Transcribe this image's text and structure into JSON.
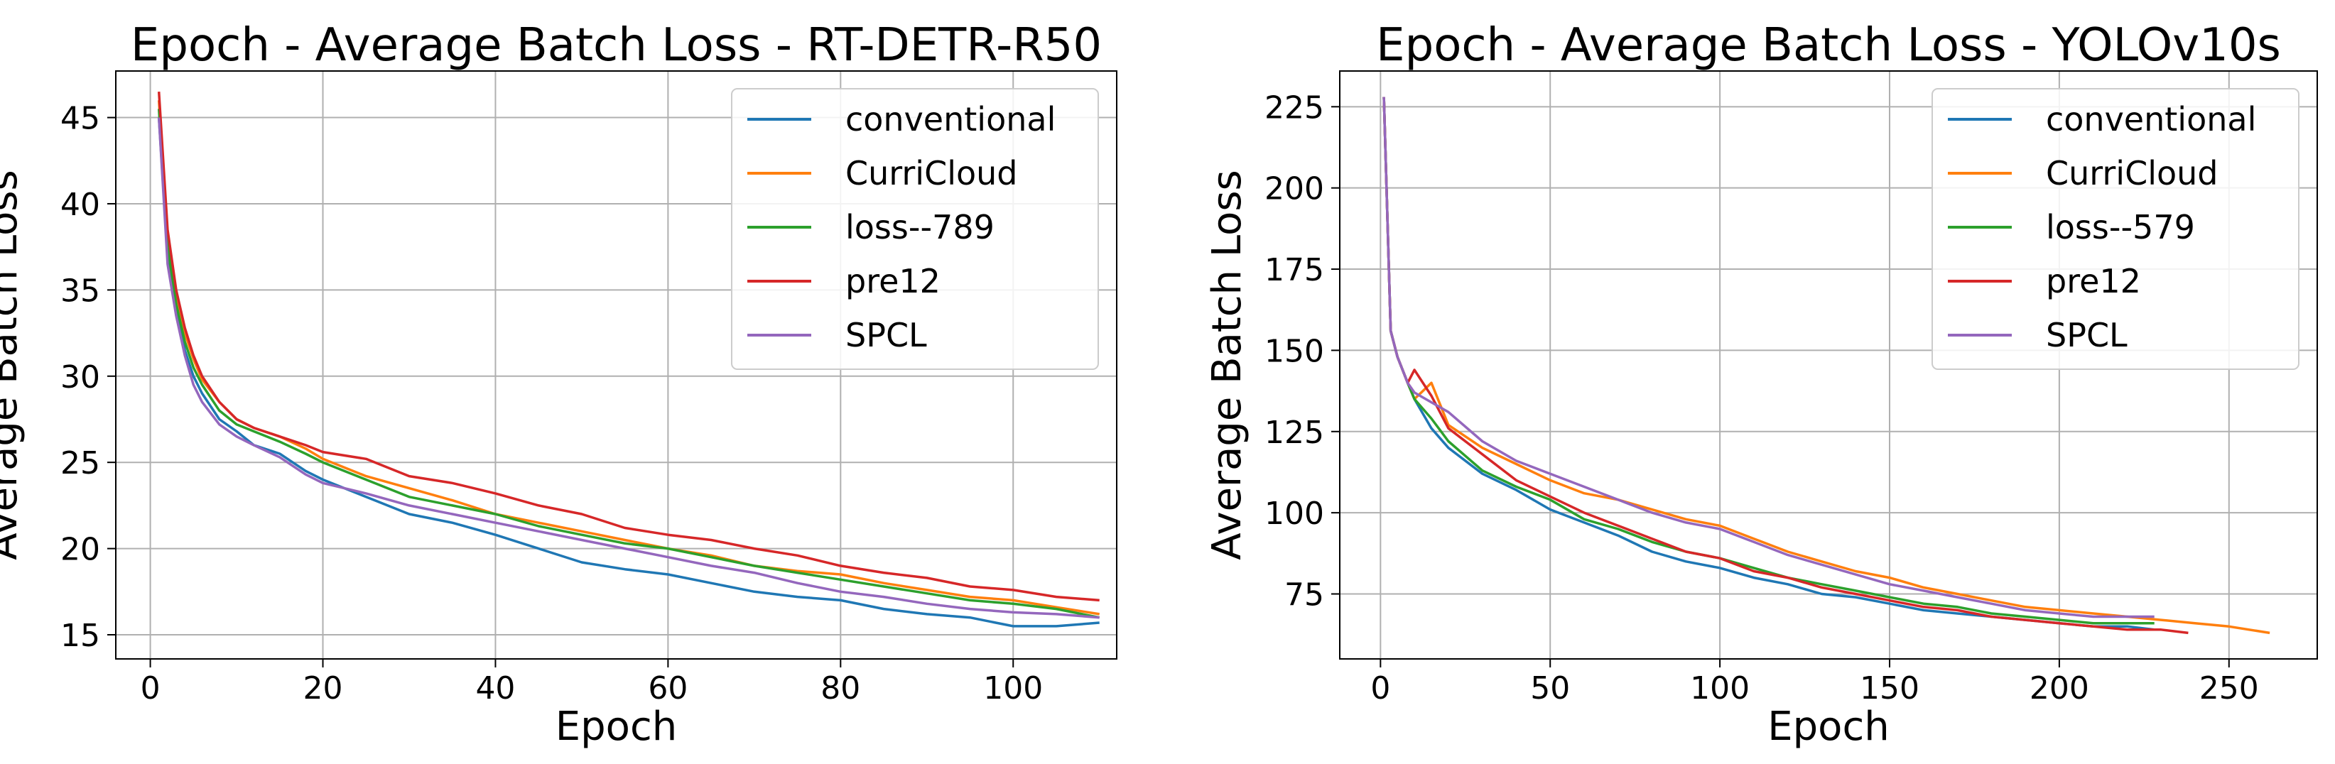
{
  "chart_data": [
    {
      "type": "line",
      "title": "Epoch - Average Batch Loss - RT-DETR-R50",
      "xlabel": "Epoch",
      "ylabel": "Average Batch Loss",
      "xlim": [
        -4,
        112
      ],
      "ylim": [
        13.6,
        47.7
      ],
      "xticks": [
        0,
        20,
        40,
        60,
        80,
        100
      ],
      "yticks": [
        15,
        20,
        25,
        30,
        35,
        40,
        45
      ],
      "grid": true,
      "legend": "top-right",
      "series": [
        {
          "name": "conventional",
          "color": "#1f77b4",
          "x": [
            1,
            2,
            3,
            4,
            5,
            6,
            8,
            10,
            12,
            15,
            18,
            20,
            25,
            30,
            35,
            40,
            45,
            50,
            55,
            60,
            65,
            70,
            75,
            80,
            85,
            90,
            95,
            100,
            105,
            110
          ],
          "y": [
            45.0,
            37.0,
            34.0,
            31.5,
            30.0,
            29.0,
            27.5,
            26.8,
            26.0,
            25.5,
            24.5,
            24.0,
            23.0,
            22.0,
            21.5,
            20.8,
            20.0,
            19.2,
            18.8,
            18.5,
            18.0,
            17.5,
            17.2,
            17.0,
            16.5,
            16.2,
            16.0,
            15.5,
            15.5,
            15.7
          ]
        },
        {
          "name": "CurriCloud",
          "color": "#ff7f0e",
          "x": [
            1,
            2,
            3,
            4,
            5,
            6,
            8,
            10,
            12,
            15,
            18,
            20,
            25,
            30,
            35,
            40,
            45,
            50,
            55,
            60,
            65,
            70,
            75,
            80,
            85,
            90,
            95,
            100,
            105,
            110
          ],
          "y": [
            46.0,
            38.0,
            34.5,
            32.5,
            31.0,
            29.8,
            28.5,
            27.5,
            27.0,
            26.5,
            25.8,
            25.2,
            24.2,
            23.5,
            22.8,
            22.0,
            21.5,
            21.0,
            20.5,
            20.0,
            19.6,
            19.0,
            18.7,
            18.5,
            18.0,
            17.6,
            17.2,
            17.0,
            16.6,
            16.2
          ]
        },
        {
          "name": "loss--789",
          "color": "#2ca02c",
          "x": [
            1,
            2,
            3,
            4,
            5,
            6,
            8,
            10,
            12,
            15,
            18,
            20,
            25,
            30,
            35,
            40,
            45,
            50,
            55,
            60,
            65,
            70,
            75,
            80,
            85,
            90,
            95,
            100,
            105,
            110
          ],
          "y": [
            45.5,
            37.5,
            34.2,
            32.0,
            30.5,
            29.5,
            28.0,
            27.2,
            26.8,
            26.2,
            25.5,
            25.0,
            24.0,
            23.0,
            22.5,
            22.0,
            21.3,
            20.8,
            20.3,
            20.0,
            19.5,
            19.0,
            18.6,
            18.2,
            17.8,
            17.4,
            17.0,
            16.8,
            16.5,
            16.0
          ]
        },
        {
          "name": "pre12",
          "color": "#d62728",
          "x": [
            1,
            2,
            3,
            4,
            5,
            6,
            8,
            10,
            12,
            15,
            18,
            20,
            25,
            30,
            35,
            40,
            45,
            50,
            55,
            60,
            65,
            70,
            75,
            80,
            85,
            90,
            95,
            100,
            105,
            110
          ],
          "y": [
            46.5,
            38.5,
            35.0,
            32.8,
            31.2,
            30.0,
            28.5,
            27.5,
            27.0,
            26.5,
            26.0,
            25.6,
            25.2,
            24.2,
            23.8,
            23.2,
            22.5,
            22.0,
            21.2,
            20.8,
            20.5,
            20.0,
            19.6,
            19.0,
            18.6,
            18.3,
            17.8,
            17.6,
            17.2,
            17.0
          ]
        },
        {
          "name": "SPCL",
          "color": "#9467bd",
          "x": [
            1,
            2,
            3,
            4,
            5,
            6,
            8,
            10,
            12,
            15,
            18,
            20,
            25,
            30,
            35,
            40,
            45,
            50,
            55,
            60,
            65,
            70,
            75,
            80,
            85,
            90,
            95,
            100,
            105,
            110
          ],
          "y": [
            45.0,
            36.5,
            33.5,
            31.2,
            29.5,
            28.5,
            27.2,
            26.5,
            26.0,
            25.3,
            24.3,
            23.8,
            23.2,
            22.5,
            22.0,
            21.5,
            21.0,
            20.5,
            20.0,
            19.5,
            19.0,
            18.6,
            18.0,
            17.5,
            17.2,
            16.8,
            16.5,
            16.3,
            16.2,
            16.0
          ]
        }
      ]
    },
    {
      "type": "line",
      "title": "Epoch - Average Batch Loss - YOLOv10s",
      "xlabel": "Epoch",
      "ylabel": "Average Batch Loss",
      "xlim": [
        -12,
        276
      ],
      "ylim": [
        55,
        236
      ],
      "xticks": [
        0,
        50,
        100,
        150,
        200,
        250
      ],
      "yticks": [
        75,
        100,
        125,
        150,
        175,
        200,
        225
      ],
      "grid": true,
      "legend": "top-right",
      "series": [
        {
          "name": "conventional",
          "color": "#1f77b4",
          "x": [
            1,
            3,
            5,
            8,
            10,
            15,
            20,
            30,
            40,
            50,
            60,
            70,
            80,
            90,
            100,
            110,
            120,
            130,
            140,
            150,
            160,
            170,
            180,
            190,
            200,
            210,
            220,
            228
          ],
          "y": [
            228,
            156,
            148,
            140,
            135,
            126,
            120,
            112,
            107,
            101,
            97,
            93,
            88,
            85,
            83,
            80,
            78,
            75,
            74,
            72,
            70,
            69,
            68,
            67,
            66,
            65,
            65,
            64
          ]
        },
        {
          "name": "CurriCloud",
          "color": "#ff7f0e",
          "x": [
            1,
            3,
            5,
            8,
            10,
            15,
            20,
            30,
            40,
            50,
            60,
            70,
            80,
            90,
            100,
            110,
            120,
            130,
            140,
            150,
            160,
            170,
            180,
            190,
            200,
            210,
            220,
            230,
            240,
            250,
            262
          ],
          "y": [
            228,
            156,
            148,
            140,
            135,
            140,
            127,
            120,
            115,
            110,
            106,
            104,
            101,
            98,
            96,
            92,
            88,
            85,
            82,
            80,
            77,
            75,
            73,
            71,
            70,
            69,
            68,
            67,
            66,
            65,
            63
          ]
        },
        {
          "name": "loss--579",
          "color": "#2ca02c",
          "x": [
            1,
            3,
            5,
            8,
            10,
            15,
            20,
            30,
            40,
            50,
            60,
            70,
            80,
            90,
            100,
            110,
            120,
            130,
            140,
            150,
            160,
            170,
            180,
            190,
            200,
            210,
            220,
            228
          ],
          "y": [
            228,
            156,
            148,
            140,
            135,
            129,
            122,
            113,
            108,
            104,
            98,
            95,
            91,
            88,
            86,
            83,
            80,
            78,
            76,
            74,
            72,
            71,
            69,
            68,
            67,
            66,
            66,
            66
          ]
        },
        {
          "name": "pre12",
          "color": "#d62728",
          "x": [
            1,
            3,
            5,
            8,
            10,
            15,
            20,
            30,
            40,
            50,
            60,
            70,
            80,
            90,
            100,
            110,
            120,
            130,
            140,
            150,
            160,
            170,
            180,
            190,
            200,
            210,
            220,
            230,
            238
          ],
          "y": [
            228,
            156,
            148,
            140,
            144,
            136,
            126,
            118,
            110,
            105,
            100,
            96,
            92,
            88,
            86,
            82,
            80,
            77,
            75,
            73,
            71,
            70,
            68,
            67,
            66,
            65,
            64,
            64,
            63
          ]
        },
        {
          "name": "SPCL",
          "color": "#9467bd",
          "x": [
            1,
            3,
            5,
            8,
            10,
            15,
            20,
            30,
            40,
            50,
            60,
            70,
            80,
            90,
            100,
            110,
            120,
            130,
            140,
            150,
            160,
            170,
            180,
            190,
            200,
            210,
            220,
            228
          ],
          "y": [
            228,
            156,
            148,
            140,
            137,
            134,
            131,
            122,
            116,
            112,
            108,
            104,
            100,
            97,
            95,
            91,
            87,
            84,
            81,
            78,
            76,
            74,
            72,
            70,
            69,
            68,
            68,
            68
          ]
        }
      ]
    }
  ]
}
